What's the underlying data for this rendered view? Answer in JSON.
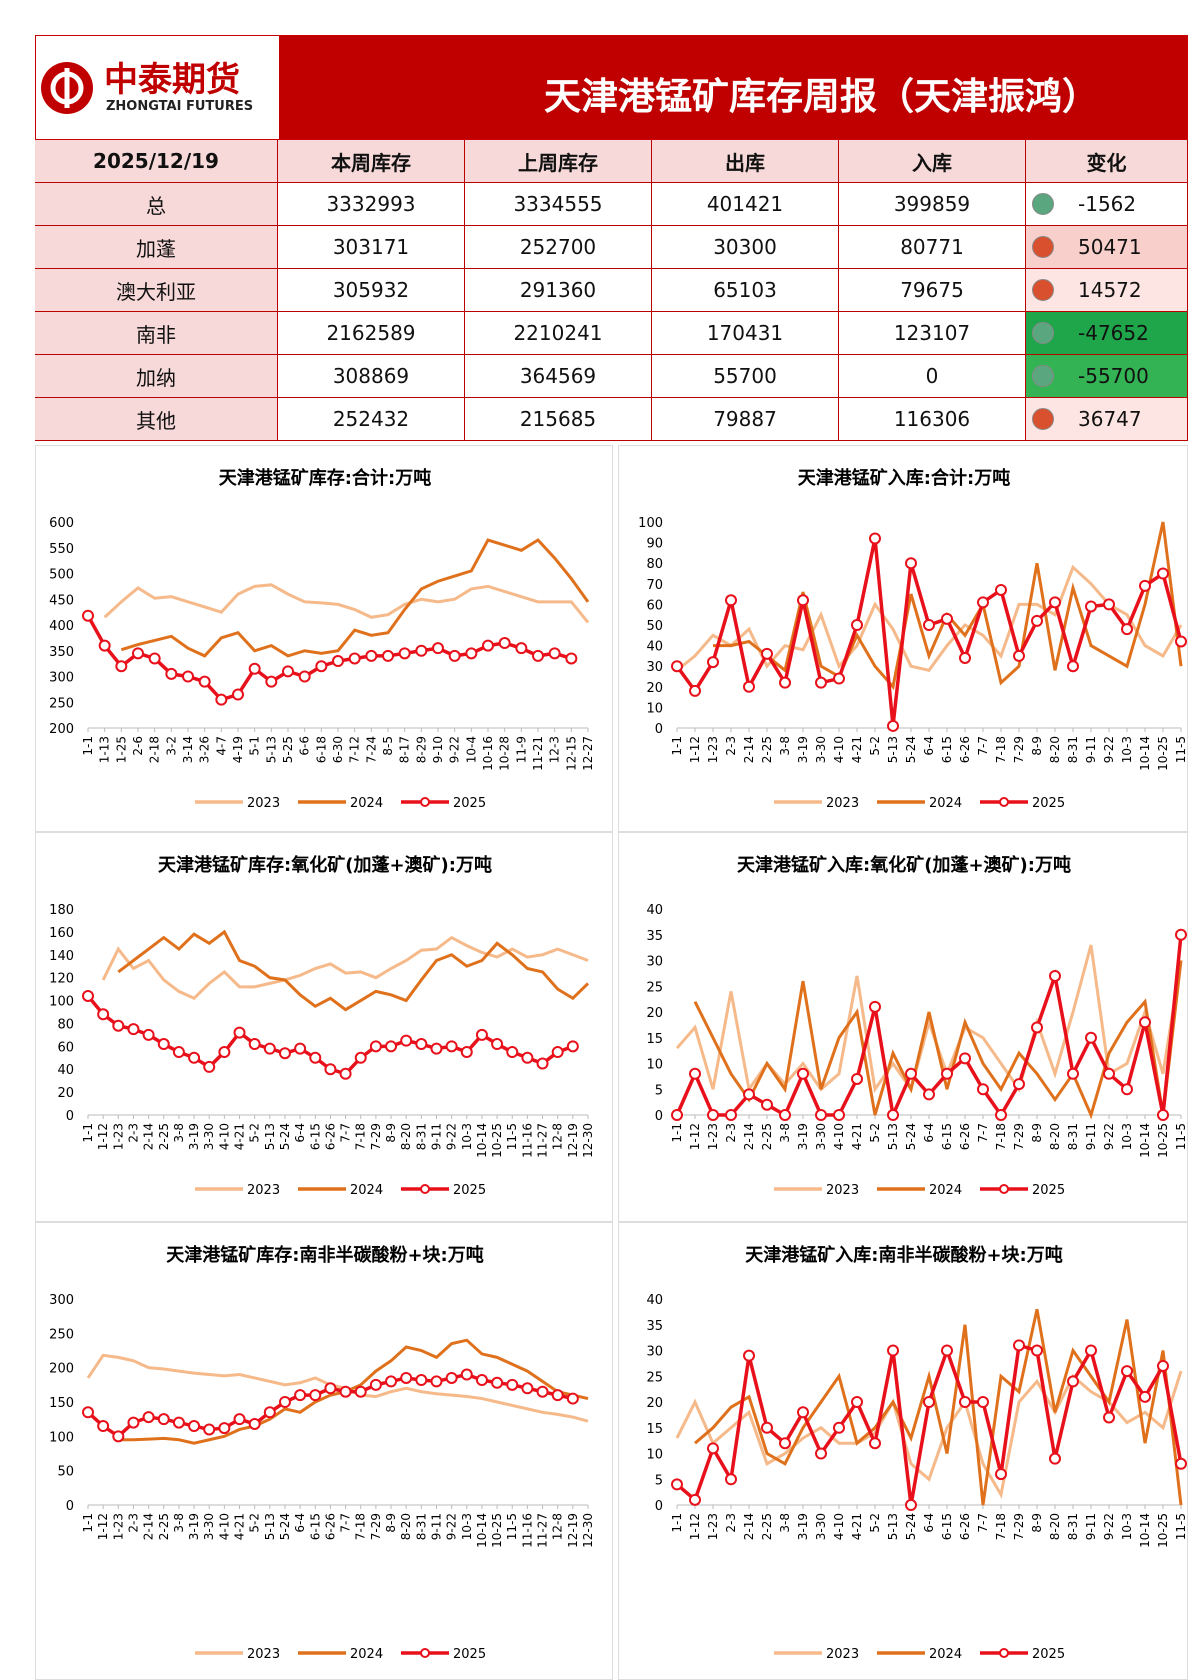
{
  "header": {
    "logo_cn": "中泰期货",
    "logo_en": "ZHONGTAI FUTURES",
    "title": "天津港锰矿库存周报（天津振鸿）"
  },
  "table": {
    "header": [
      "2025/12/19",
      "本周库存",
      "上周库存",
      "出库",
      "入库",
      "变化"
    ],
    "rows": [
      [
        "总",
        3332993,
        3334555,
        401421,
        399859,
        -1562
      ],
      [
        "加蓬",
        303171,
        252700,
        30300,
        80771,
        50471
      ],
      [
        "澳大利亚",
        305932,
        291360,
        65103,
        79675,
        14572
      ],
      [
        "南非",
        2162589,
        2210241,
        170431,
        123107,
        -47652
      ],
      [
        "加纳",
        308869,
        364569,
        55700,
        0,
        -55700
      ],
      [
        "其他",
        252432,
        215685,
        79887,
        116306,
        36747
      ]
    ],
    "change_fills": [
      "#ffffff",
      "#f8cfcb",
      "#fce5e2",
      "#1fa64a",
      "#34b354",
      "#fce5e2"
    ]
  },
  "chart_data": [
    {
      "type": "line",
      "title": "天津港锰矿库存:合计:万吨",
      "ylim": [
        200,
        600
      ],
      "yticks": [
        200,
        250,
        300,
        350,
        400,
        450,
        500,
        550,
        600
      ],
      "categories": [
        "1-1",
        "1-13",
        "1-25",
        "2-6",
        "2-18",
        "3-2",
        "3-14",
        "3-26",
        "4-7",
        "4-19",
        "5-1",
        "5-13",
        "5-25",
        "6-6",
        "6-18",
        "6-30",
        "7-12",
        "7-24",
        "8-5",
        "8-17",
        "8-29",
        "9-10",
        "9-22",
        "10-4",
        "10-16",
        "10-28",
        "11-9",
        "11-21",
        "12-3",
        "12-15",
        "12-27"
      ],
      "series": [
        {
          "name": "2023",
          "color": "#f5b98a",
          "values": [
            null,
            415,
            445,
            472,
            452,
            455,
            445,
            435,
            425,
            460,
            475,
            478,
            460,
            445,
            443,
            440,
            430,
            415,
            420,
            440,
            450,
            445,
            450,
            470,
            475,
            465,
            455,
            445,
            445,
            445,
            405
          ]
        },
        {
          "name": "2024",
          "color": "#e0711c",
          "values": [
            null,
            null,
            352,
            362,
            370,
            378,
            355,
            340,
            375,
            385,
            350,
            360,
            340,
            350,
            345,
            350,
            390,
            380,
            385,
            430,
            470,
            485,
            495,
            505,
            565,
            555,
            545,
            565,
            530,
            490,
            445
          ]
        },
        {
          "name": "2025",
          "color": "#e8101a",
          "marker": true,
          "values": [
            418,
            360,
            320,
            345,
            335,
            305,
            300,
            290,
            255,
            265,
            315,
            290,
            310,
            300,
            320,
            330,
            335,
            340,
            340,
            345,
            350,
            355,
            340,
            345,
            360,
            365,
            355,
            340,
            345,
            335,
            null
          ]
        }
      ]
    },
    {
      "type": "line",
      "title": "天津港锰矿入库:合计:万吨",
      "ylim": [
        0,
        100
      ],
      "yticks": [
        0,
        10,
        20,
        30,
        40,
        50,
        60,
        70,
        80,
        90,
        100
      ],
      "categories": [
        "1-1",
        "1-12",
        "1-23",
        "2-3",
        "2-14",
        "2-25",
        "3-8",
        "3-19",
        "3-30",
        "4-10",
        "4-21",
        "5-2",
        "5-13",
        "5-24",
        "6-4",
        "6-15",
        "6-26",
        "7-7",
        "7-18",
        "7-29",
        "8-9",
        "8-20",
        "8-31",
        "9-11",
        "9-22",
        "10-3",
        "10-14",
        "10-25",
        "11-5"
      ],
      "series": [
        {
          "name": "2023",
          "color": "#f5b98a",
          "values": [
            28,
            35,
            45,
            40,
            48,
            30,
            40,
            38,
            55,
            30,
            40,
            60,
            48,
            30,
            28,
            40,
            50,
            45,
            35,
            60,
            60,
            55,
            78,
            70,
            60,
            55,
            40,
            35,
            50
          ]
        },
        {
          "name": "2024",
          "color": "#e0711c",
          "values": [
            null,
            null,
            40,
            40,
            42,
            35,
            28,
            66,
            30,
            25,
            45,
            30,
            20,
            65,
            35,
            55,
            45,
            60,
            22,
            30,
            80,
            28,
            68,
            40,
            35,
            30,
            60,
            100,
            30
          ]
        },
        {
          "name": "2025",
          "color": "#e8101a",
          "marker": true,
          "values": [
            30,
            18,
            32,
            62,
            20,
            36,
            22,
            62,
            22,
            24,
            50,
            92,
            1,
            80,
            50,
            53,
            34,
            61,
            67,
            35,
            52,
            61,
            30,
            59,
            60,
            48,
            69,
            75,
            42
          ]
        }
      ]
    },
    {
      "type": "line",
      "title": "天津港锰矿库存:氧化矿(加蓬+澳矿):万吨",
      "ylim": [
        0,
        180
      ],
      "yticks": [
        0,
        20,
        40,
        60,
        80,
        100,
        120,
        140,
        160,
        180
      ],
      "categories": [
        "1-1",
        "1-12",
        "1-23",
        "2-3",
        "2-14",
        "2-25",
        "3-8",
        "3-19",
        "3-30",
        "4-10",
        "4-21",
        "5-2",
        "5-13",
        "5-24",
        "6-4",
        "6-15",
        "6-26",
        "7-7",
        "7-18",
        "7-29",
        "8-9",
        "8-20",
        "8-31",
        "9-11",
        "9-22",
        "10-3",
        "10-14",
        "10-25",
        "11-5",
        "11-16",
        "11-27",
        "12-8",
        "12-19",
        "12-30"
      ],
      "series": [
        {
          "name": "2023",
          "color": "#f5b98a",
          "values": [
            null,
            118,
            145,
            128,
            135,
            118,
            108,
            102,
            115,
            125,
            112,
            112,
            115,
            118,
            122,
            128,
            132,
            124,
            125,
            120,
            128,
            135,
            144,
            145,
            155,
            148,
            142,
            138,
            145,
            138,
            140,
            145,
            140,
            135
          ]
        },
        {
          "name": "2024",
          "color": "#e0711c",
          "values": [
            null,
            null,
            125,
            135,
            145,
            155,
            145,
            158,
            150,
            160,
            135,
            130,
            120,
            118,
            105,
            95,
            102,
            92,
            100,
            108,
            105,
            100,
            118,
            135,
            140,
            130,
            135,
            150,
            140,
            128,
            125,
            110,
            102,
            115
          ]
        },
        {
          "name": "2025",
          "color": "#e8101a",
          "marker": true,
          "values": [
            104,
            88,
            78,
            75,
            70,
            62,
            55,
            50,
            42,
            55,
            72,
            62,
            58,
            54,
            58,
            50,
            40,
            36,
            50,
            60,
            60,
            65,
            62,
            58,
            60,
            55,
            70,
            62,
            55,
            50,
            45,
            55,
            60,
            null
          ]
        }
      ]
    },
    {
      "type": "line",
      "title": "天津港锰矿入库:氧化矿(加蓬+澳矿):万吨",
      "ylim": [
        0,
        40
      ],
      "yticks": [
        0,
        5,
        10,
        15,
        20,
        25,
        30,
        35,
        40
      ],
      "categories": [
        "1-1",
        "1-12",
        "1-23",
        "2-3",
        "2-14",
        "2-25",
        "3-8",
        "3-19",
        "3-30",
        "4-10",
        "4-21",
        "5-2",
        "5-13",
        "5-24",
        "6-4",
        "6-15",
        "6-26",
        "7-7",
        "7-18",
        "7-29",
        "8-9",
        "8-20",
        "8-31",
        "9-11",
        "9-22",
        "10-3",
        "10-14",
        "10-25",
        "11-5"
      ],
      "series": [
        {
          "name": "2023",
          "color": "#f5b98a",
          "values": [
            13,
            17,
            5,
            24,
            5,
            10,
            6,
            10,
            5,
            8,
            27,
            5,
            10,
            5,
            18,
            8,
            17,
            15,
            10,
            5,
            18,
            8,
            20,
            33,
            8,
            10,
            20,
            8,
            30
          ]
        },
        {
          "name": "2024",
          "color": "#e0711c",
          "values": [
            null,
            22,
            15,
            8,
            3,
            10,
            5,
            26,
            5,
            15,
            20,
            0,
            12,
            5,
            20,
            5,
            18,
            10,
            5,
            12,
            8,
            3,
            8,
            0,
            12,
            18,
            22,
            0,
            30
          ]
        },
        {
          "name": "2025",
          "color": "#e8101a",
          "marker": true,
          "values": [
            0,
            8,
            0,
            0,
            4,
            2,
            0,
            8,
            0,
            0,
            7,
            21,
            0,
            8,
            4,
            8,
            11,
            5,
            0,
            6,
            17,
            27,
            8,
            15,
            8,
            5,
            18,
            0,
            35
          ]
        }
      ]
    },
    {
      "type": "line",
      "title": "天津港锰矿库存:南非半碳酸粉+块:万吨",
      "ylim": [
        0,
        300
      ],
      "yticks": [
        0,
        50,
        100,
        150,
        200,
        250,
        300
      ],
      "categories": [
        "1-1",
        "1-12",
        "1-23",
        "2-3",
        "2-14",
        "2-25",
        "3-8",
        "3-19",
        "3-30",
        "4-10",
        "4-21",
        "5-2",
        "5-13",
        "5-24",
        "6-4",
        "6-15",
        "6-26",
        "7-7",
        "7-18",
        "7-29",
        "8-9",
        "8-20",
        "8-31",
        "9-11",
        "9-22",
        "10-3",
        "10-14",
        "10-25",
        "11-5",
        "11-16",
        "11-27",
        "12-8",
        "12-19",
        "12-30"
      ],
      "series": [
        {
          "name": "2023",
          "color": "#f5b98a",
          "values": [
            185,
            218,
            215,
            210,
            200,
            198,
            195,
            192,
            190,
            188,
            190,
            185,
            180,
            175,
            178,
            185,
            175,
            170,
            160,
            158,
            165,
            170,
            165,
            162,
            160,
            158,
            155,
            150,
            145,
            140,
            135,
            132,
            128,
            122
          ]
        },
        {
          "name": "2024",
          "color": "#e0711c",
          "values": [
            null,
            null,
            95,
            95,
            96,
            97,
            95,
            90,
            95,
            100,
            110,
            115,
            125,
            140,
            135,
            150,
            160,
            165,
            175,
            195,
            210,
            230,
            225,
            215,
            235,
            240,
            220,
            215,
            205,
            195,
            180,
            165,
            160,
            155
          ]
        },
        {
          "name": "2025",
          "color": "#e8101a",
          "marker": true,
          "values": [
            135,
            115,
            100,
            120,
            128,
            125,
            120,
            115,
            110,
            112,
            125,
            118,
            135,
            150,
            160,
            160,
            170,
            165,
            165,
            175,
            180,
            185,
            182,
            180,
            185,
            190,
            182,
            178,
            175,
            170,
            165,
            160,
            155,
            null
          ]
        }
      ]
    },
    {
      "type": "line",
      "title": "天津港锰矿入库:南非半碳酸粉+块:万吨",
      "ylim": [
        0,
        40
      ],
      "yticks": [
        0,
        5,
        10,
        15,
        20,
        25,
        30,
        35,
        40
      ],
      "categories": [
        "1-1",
        "1-12",
        "1-23",
        "2-3",
        "2-14",
        "2-25",
        "3-8",
        "3-19",
        "3-30",
        "4-10",
        "4-21",
        "5-2",
        "5-13",
        "5-24",
        "6-4",
        "6-15",
        "6-26",
        "7-7",
        "7-18",
        "7-29",
        "8-9",
        "8-20",
        "8-31",
        "9-11",
        "9-22",
        "10-3",
        "10-14",
        "10-25",
        "11-5"
      ],
      "series": [
        {
          "name": "2023",
          "color": "#f5b98a",
          "values": [
            13,
            20,
            12,
            15,
            18,
            8,
            10,
            13,
            15,
            12,
            12,
            14,
            20,
            8,
            5,
            15,
            20,
            8,
            2,
            20,
            24,
            18,
            25,
            22,
            20,
            16,
            18,
            15,
            26
          ]
        },
        {
          "name": "2024",
          "color": "#e0711c",
          "values": [
            null,
            12,
            15,
            19,
            21,
            10,
            8,
            15,
            20,
            25,
            12,
            15,
            20,
            13,
            25,
            10,
            35,
            0,
            25,
            22,
            38,
            18,
            30,
            25,
            20,
            36,
            12,
            30,
            0
          ]
        },
        {
          "name": "2025",
          "color": "#e8101a",
          "marker": true,
          "values": [
            4,
            1,
            11,
            5,
            29,
            15,
            12,
            18,
            10,
            15,
            20,
            12,
            30,
            0,
            20,
            30,
            20,
            20,
            6,
            31,
            30,
            9,
            24,
            30,
            17,
            26,
            21,
            27,
            8
          ]
        }
      ]
    }
  ]
}
